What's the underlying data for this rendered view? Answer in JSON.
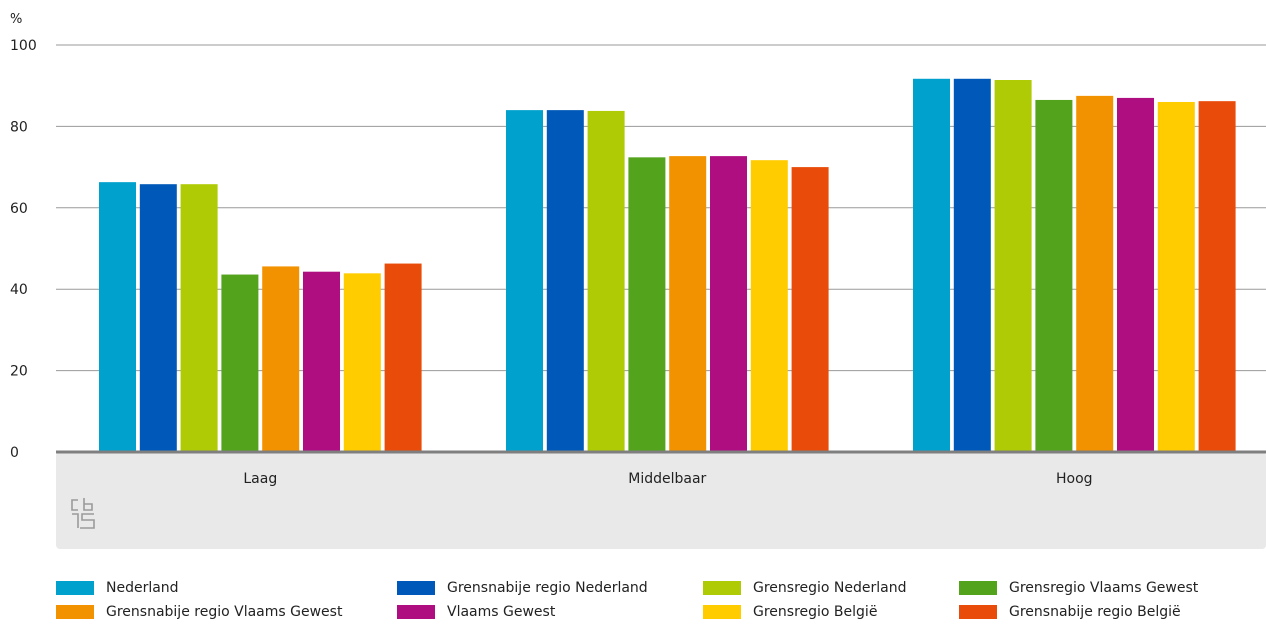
{
  "chart_data": {
    "type": "bar",
    "unit_label": "%",
    "categories": [
      "Laag",
      "Middelbaar",
      "Hoog"
    ],
    "ylim": [
      0,
      100
    ],
    "yticks": [
      0,
      20,
      40,
      60,
      80,
      100
    ],
    "grid": true,
    "legend_position": "bottom",
    "series": [
      {
        "name": "Nederland",
        "color": "#00a1cd",
        "values": [
          66.3,
          84.0,
          91.7
        ]
      },
      {
        "name": "Grensnabije regio Nederland",
        "color": "#0058b8",
        "values": [
          65.8,
          84.0,
          91.7
        ]
      },
      {
        "name": "Grensregio Nederland",
        "color": "#afcb05",
        "values": [
          65.8,
          83.8,
          91.4
        ]
      },
      {
        "name": "Grensregio Vlaams Gewest",
        "color": "#53a31d",
        "values": [
          43.6,
          72.4,
          86.5
        ]
      },
      {
        "name": "Grensnabije regio Vlaams Gewest",
        "color": "#f39200",
        "values": [
          45.6,
          72.7,
          87.5
        ]
      },
      {
        "name": "Vlaams Gewest",
        "color": "#af0e80",
        "values": [
          44.3,
          72.7,
          87.0
        ]
      },
      {
        "name": "Grensregio België",
        "color": "#ffcc00",
        "values": [
          43.9,
          71.7,
          86.0
        ]
      },
      {
        "name": "Grensnabije regio België",
        "color": "#e94c0a",
        "values": [
          46.3,
          70.0,
          86.2
        ]
      }
    ]
  }
}
